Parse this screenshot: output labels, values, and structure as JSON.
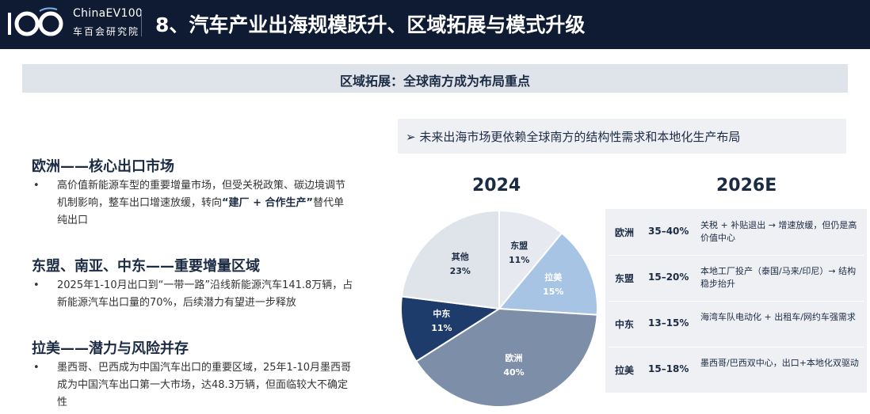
{
  "header": {
    "logo_brand": "ChinaEV100",
    "logo_cn": "车百会研究院",
    "title": "8、汽车产业出海规模跃升、区域拓展与模式升级"
  },
  "banner": "区域拓展：全球南方成为布局重点",
  "left": {
    "sections": [
      {
        "title": "欧洲——核心出口市场",
        "bullet": "•",
        "text_pre": "高价值新能源车型的重要增量市场，但受关税政策、碳边境调节机制影响，整车出口增速放缓，转向",
        "text_bold": "“建厂 + 合作生产”",
        "text_post": "替代单纯出口"
      },
      {
        "title": "东盟、南亚、中东——重要增量区域",
        "bullet": "•",
        "text": "2025年1-10月出口到“一带一路”沿线新能源汽车141.8万辆，占新能源汽车出口量的70%，后续潜力有望进一步释放"
      },
      {
        "title": "拉美——潜力与风险并存",
        "bullet": "•",
        "text": "墨西哥、巴西成为中国汽车出口的重要区域，25年1-10月墨西哥成为中国汽车出口第一大市场，达48.3万辆，但面临较大不确定性"
      }
    ]
  },
  "right": {
    "header": "➢ 未来出海市场更依赖全球南方的结构性需求和本地化生产布局",
    "year_left": "2024",
    "year_right": "2026E",
    "pie_slices": [
      {
        "label": "东盟",
        "pct_text": "11%",
        "value": 11,
        "color": "#e6e9ef",
        "text_color": "#1c2b44"
      },
      {
        "label": "拉美",
        "pct_text": "15%",
        "value": 15,
        "color": "#a8c4e4",
        "text_color": "#ffffff"
      },
      {
        "label": "欧洲",
        "pct_text": "40%",
        "value": 40,
        "color": "#7d8ea9",
        "text_color": "#ffffff"
      },
      {
        "label": "中东",
        "pct_text": "11%",
        "value": 11,
        "color": "#1d3b6b",
        "text_color": "#ffffff"
      },
      {
        "label": "其他",
        "pct_text": "23%",
        "value": 23,
        "color": "#dfe3ea",
        "text_color": "#1c2b44"
      }
    ],
    "table": [
      {
        "region": "欧洲",
        "range": "35–40%",
        "desc": "关税 + 补贴退出 → 增速放缓，但仍是高价值中心"
      },
      {
        "region": "东盟",
        "range": "15–20%",
        "desc": "本地工厂投产（泰国/马来/印尼）→ 结构稳步抬升"
      },
      {
        "region": "中东",
        "range": "13–15%",
        "desc": "海湾车队电动化 + 出租车/网约车强需求"
      },
      {
        "region": "拉美",
        "range": "15–18%",
        "desc": "墨西哥/巴西双中心，出口+本地化双驱动"
      }
    ]
  }
}
